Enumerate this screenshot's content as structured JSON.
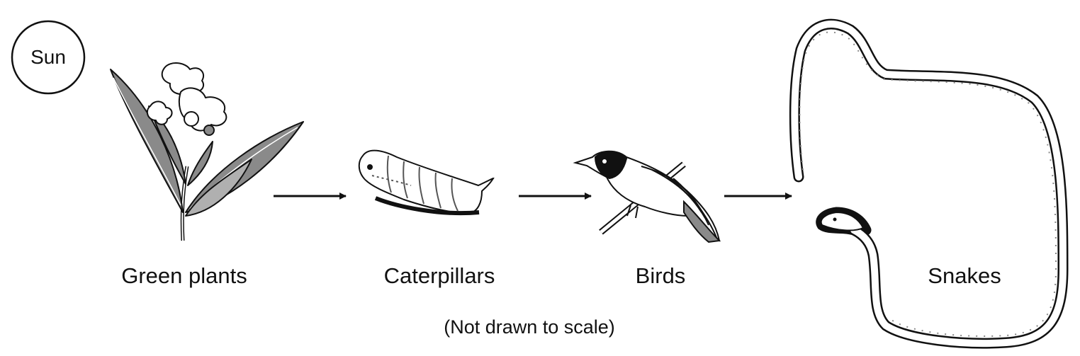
{
  "sun": {
    "label": "Sun"
  },
  "organisms": [
    {
      "label": "Green plants",
      "icon": "plant-icon"
    },
    {
      "label": "Caterpillars",
      "icon": "caterpillar-icon"
    },
    {
      "label": "Birds",
      "icon": "bird-icon"
    },
    {
      "label": "Snakes",
      "icon": "snake-icon"
    }
  ],
  "note": "(Not drawn to scale)",
  "colors": {
    "ink": "#111111",
    "shade": "#8a8a8a",
    "background": "#ffffff"
  }
}
